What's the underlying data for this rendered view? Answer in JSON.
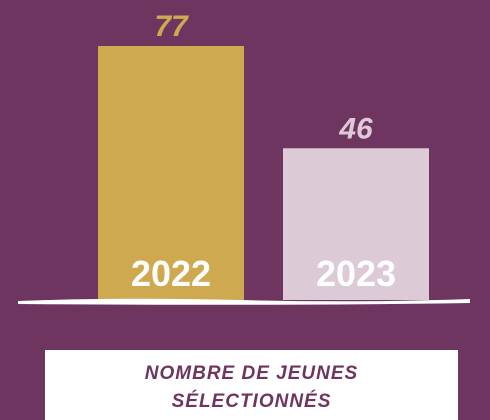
{
  "chart_data": {
    "type": "bar",
    "title": "NOMBRE DE JEUNES SÉLECTIONNÉS",
    "categories": [
      "2022",
      "2023"
    ],
    "values": [
      77,
      46
    ],
    "colors": [
      "#cfa94f",
      "#dccad7"
    ]
  }
}
